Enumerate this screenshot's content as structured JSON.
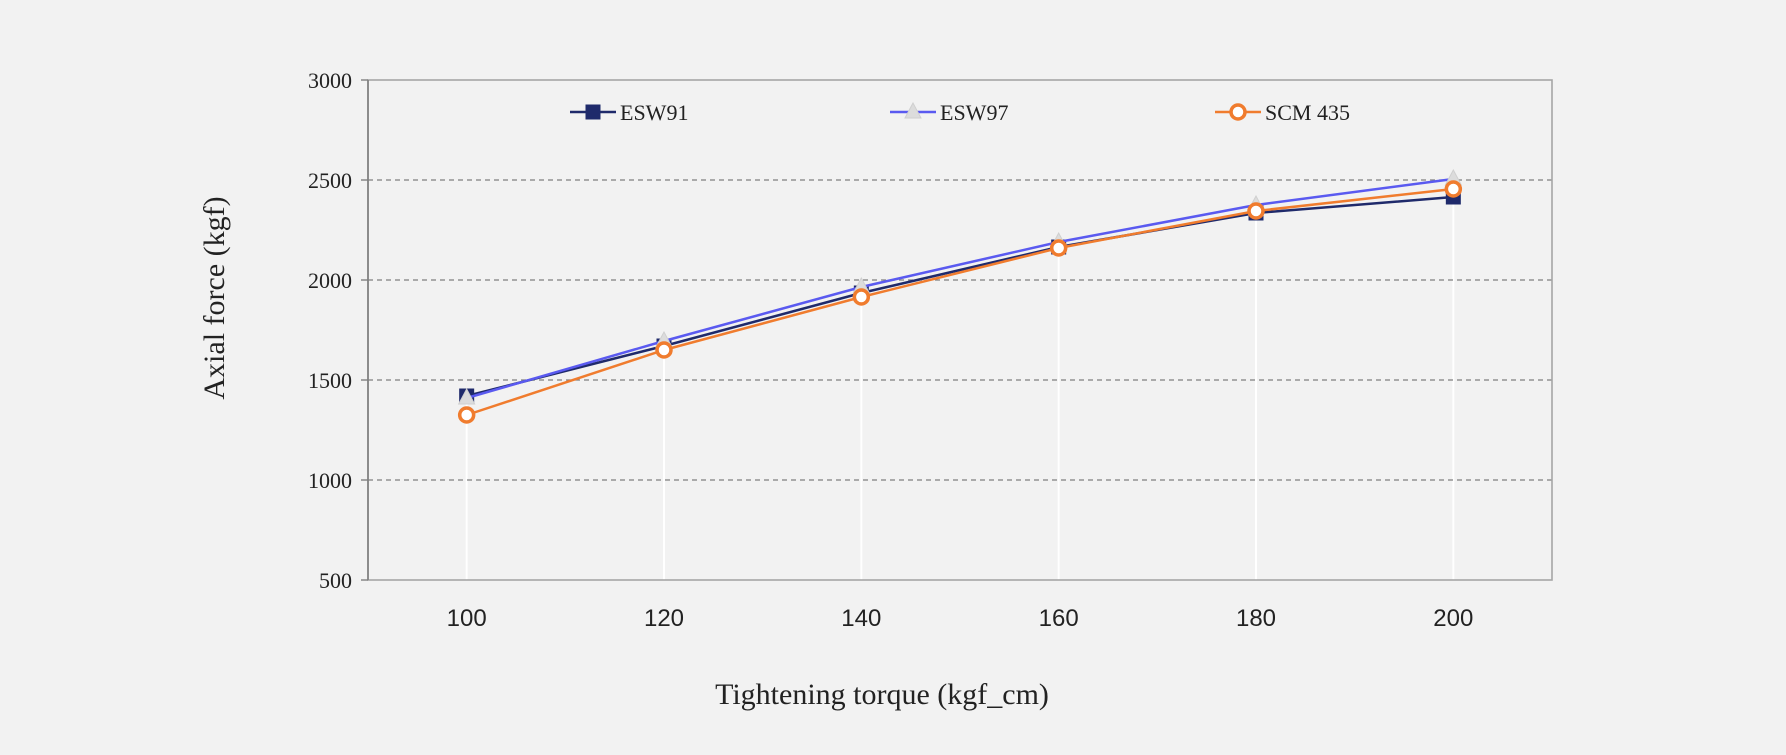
{
  "chart_data": {
    "type": "line",
    "title": "",
    "xlabel": "Tightening torque (kgf_cm)",
    "ylabel": "Axial force (kgf)",
    "x": [
      100,
      120,
      140,
      160,
      180,
      200
    ],
    "x_tick_labels": [
      "100",
      "120",
      "140",
      "160",
      "180",
      "200"
    ],
    "xlim": [
      90,
      210
    ],
    "ylim": [
      500,
      3000
    ],
    "y_ticks": [
      500,
      1000,
      1500,
      2000,
      2500,
      3000
    ],
    "y_tick_labels": [
      "500",
      "1000",
      "1500",
      "2000",
      "2500",
      "3000"
    ],
    "grid": "horizontal dashed",
    "legend_position": "top",
    "series": [
      {
        "name": "ESW91",
        "values": [
          1420,
          1670,
          1935,
          2165,
          2335,
          2415
        ],
        "color": "#1f2a6b",
        "marker": "square"
      },
      {
        "name": "ESW97",
        "values": [
          1410,
          1695,
          1965,
          2190,
          2375,
          2505
        ],
        "color": "#5a5af0",
        "marker": "triangle"
      },
      {
        "name": "SCM 435",
        "values": [
          1325,
          1650,
          1915,
          2160,
          2345,
          2455
        ],
        "color": "#f07c2e",
        "marker": "circle"
      }
    ]
  }
}
